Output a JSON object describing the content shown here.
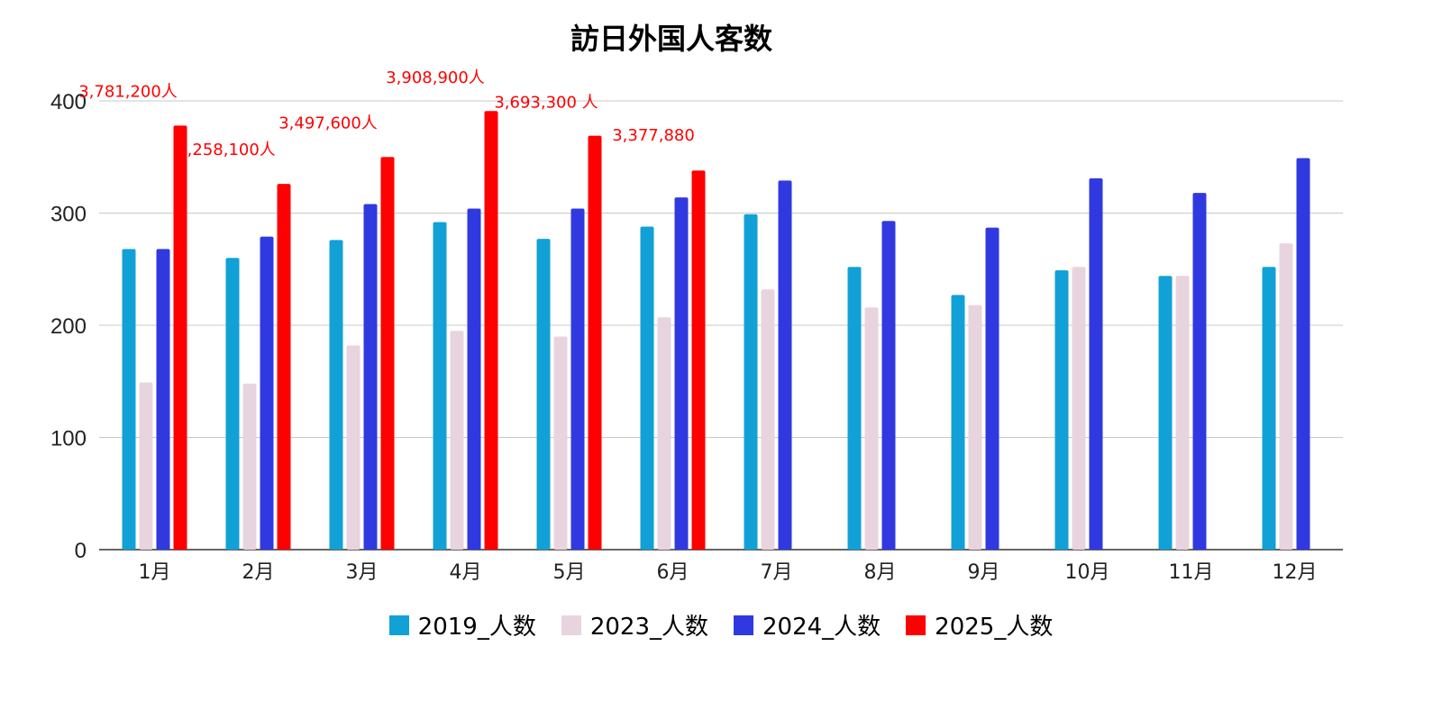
{
  "chart_data": {
    "type": "bar",
    "title": "訪日外国人客数",
    "xlabel": "",
    "ylabel": "",
    "ylim": [
      0,
      400
    ],
    "yticks": [
      0,
      100,
      200,
      300,
      400
    ],
    "grid": true,
    "legend_position": "bottom",
    "categories": [
      "1月",
      "2月",
      "3月",
      "4月",
      "5月",
      "6月",
      "7月",
      "8月",
      "9月",
      "10月",
      "11月",
      "12月"
    ],
    "series": [
      {
        "name": "2019_人数",
        "color": "#12a1d6",
        "values": [
          268,
          260,
          276,
          292,
          277,
          288,
          299,
          252,
          227,
          249,
          244,
          252
        ]
      },
      {
        "name": "2023_人数",
        "color": "#e8d4de",
        "values": [
          149,
          148,
          182,
          195,
          190,
          207,
          232,
          216,
          218,
          252,
          244,
          273
        ]
      },
      {
        "name": "2024_人数",
        "color": "#3039e0",
        "values": [
          268,
          279,
          308,
          304,
          304,
          314,
          329,
          293,
          287,
          331,
          318,
          349
        ]
      },
      {
        "name": "2025_人数",
        "color": "#ff0000",
        "values": [
          378,
          326,
          350,
          391,
          369,
          338,
          null,
          null,
          null,
          null,
          null,
          null
        ]
      }
    ],
    "annotations": [
      {
        "category": "1月",
        "text": "3,781,200人"
      },
      {
        "category": "2月",
        "text": "3,258,100人"
      },
      {
        "category": "3月",
        "text": "3,497,600人"
      },
      {
        "category": "4月",
        "text": "3,908,900人"
      },
      {
        "category": "5月",
        "text": "3,693,300 人"
      },
      {
        "category": "6月",
        "text": "3,377,880"
      }
    ],
    "annotation_color": "#ff0000"
  }
}
